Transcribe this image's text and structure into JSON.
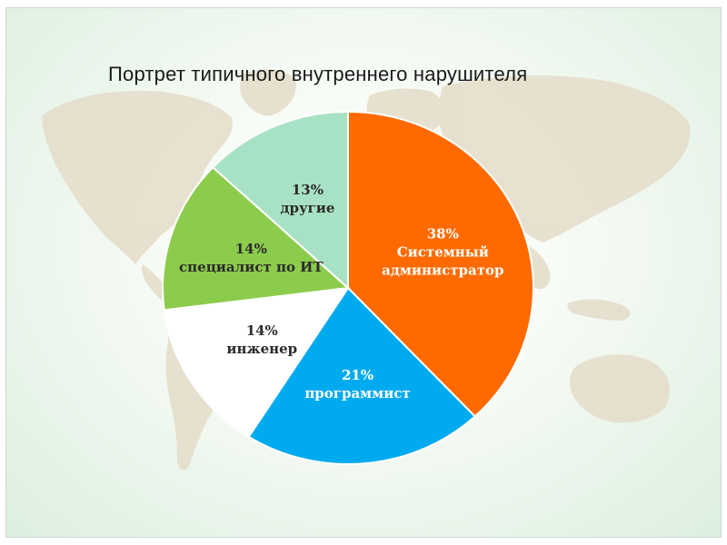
{
  "slide": {
    "title": "Портрет типичного внутреннего нарушителя"
  },
  "colors": {
    "background_top": "#ffffff",
    "background_edge": "#dcefdf",
    "map_land": "#e4dcc8",
    "slice_outline": "#ffffff",
    "text_dark": "#2b2b2b",
    "text_light": "#ffffff"
  },
  "chart_data": {
    "type": "pie",
    "title": "Портрет типичного внутреннего нарушителя",
    "start": "12 o'clock",
    "direction": "clockwise",
    "slices": [
      {
        "label": "Системный администратор",
        "label_lines": [
          "Системный",
          "администратор"
        ],
        "value": 38,
        "display": "38%",
        "color": "#ff6a00"
      },
      {
        "label": "программист",
        "label_lines": [
          "программист"
        ],
        "value": 21,
        "display": "21%",
        "color": "#00aaee"
      },
      {
        "label": "инженер",
        "label_lines": [
          "инженер"
        ],
        "value": 14,
        "display": "14%",
        "color": "#ffffff"
      },
      {
        "label": "специалист по ИТ",
        "label_lines": [
          "специалист по ИТ"
        ],
        "value": 14,
        "display": "14%",
        "color": "#8ccc4c"
      },
      {
        "label": "другие",
        "label_lines": [
          "другие"
        ],
        "value": 13,
        "display": "13%",
        "color": "#a8e2c4"
      }
    ]
  }
}
